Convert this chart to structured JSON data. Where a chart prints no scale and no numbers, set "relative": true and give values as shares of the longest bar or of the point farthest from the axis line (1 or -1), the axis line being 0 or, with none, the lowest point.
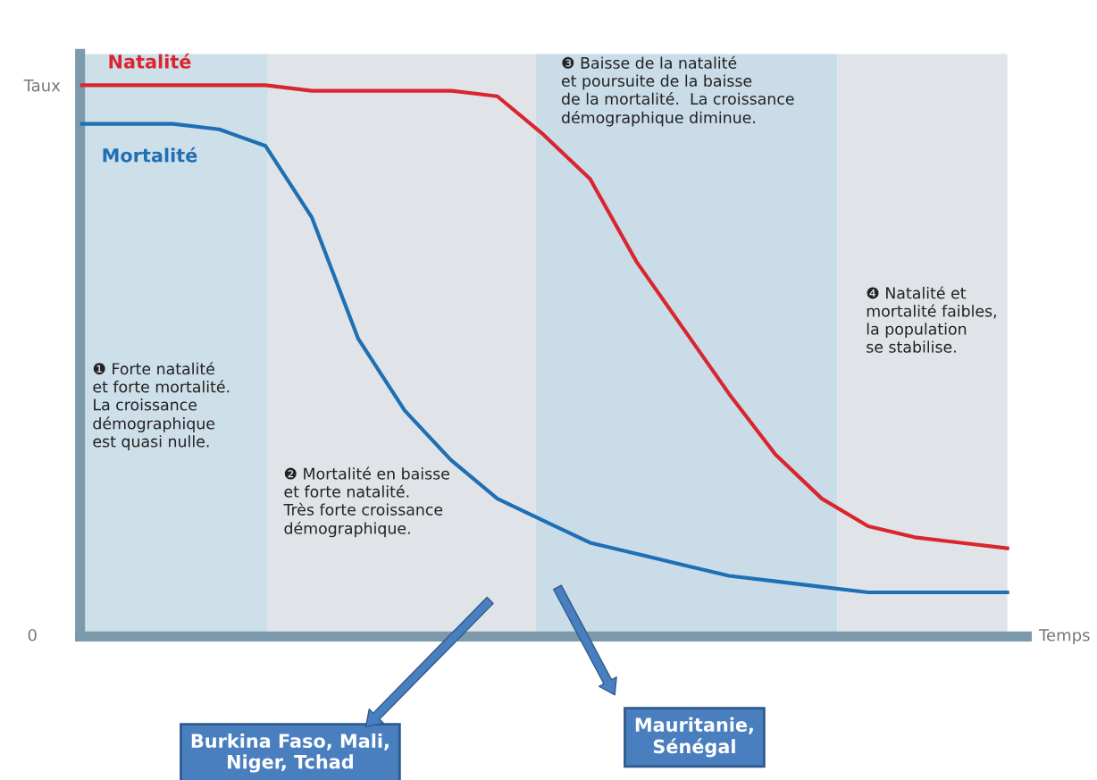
{
  "chart_data": {
    "type": "line",
    "relative": true,
    "ylabel": "Taux",
    "xlabel": "Temps",
    "categories": [
      null,
      null,
      null,
      null,
      null,
      null,
      null,
      null,
      null,
      null,
      null,
      null,
      null,
      null,
      null,
      null,
      null,
      null,
      null,
      null,
      null
    ],
    "series": [
      {
        "name": "Natalité",
        "color": "#d9262e",
        "values": [
          1,
          1,
          1,
          1,
          1,
          0.99,
          0.99,
          0.99,
          0.99,
          0.98,
          0.91,
          0.83,
          0.68,
          0.56,
          0.44,
          0.33,
          0.25,
          0.2,
          0.18,
          0.17,
          0.16
        ]
      },
      {
        "name": "Mortalité",
        "color": "#1f6fb4",
        "values": [
          0.93,
          0.93,
          0.93,
          0.92,
          0.89,
          0.76,
          0.54,
          0.41,
          0.32,
          0.25,
          0.21,
          0.17,
          0.15,
          0.13,
          0.11,
          0.1,
          0.09,
          0.08,
          0.08,
          0.08,
          0.08
        ]
      }
    ],
    "annotations": [
      "0",
      "❶ Forte natalité\net forte mortalité.\nLa croissance\ndémographique\nest quasi nulle.",
      "❷ Mortalité en baisse\net forte natalité.\nTrès forte croissance\ndémographique.",
      "❸ Baisse de la natalité\net poursuite de la baisse\nde la mortalité.  La croissance\ndémographique diminue.",
      "❹ Natalité et\nmortalité faibles,\nla population\nse stabilise.",
      "Burkina Faso, Mali,\nNiger, Tchad",
      "Mauritanie,\nSénégal"
    ],
    "legend": false,
    "marker": "none",
    "line_style": "solid"
  }
}
